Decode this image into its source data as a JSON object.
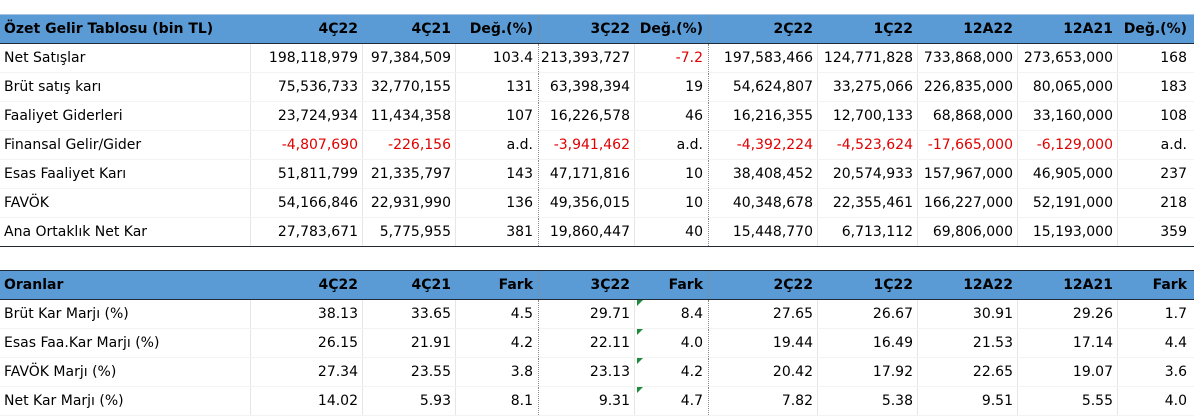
{
  "income": {
    "headers": [
      "Özet Gelir Tablosu (bin TL)",
      "4Ç22",
      "4Ç21",
      "Değ.(%)",
      "3Ç22",
      "Değ.(%)",
      "2Ç22",
      "1Ç22",
      "12A22",
      "12A21",
      "Değ.(%)"
    ],
    "rows": [
      {
        "label": "Net Satışlar",
        "cells": [
          "198,118,979",
          "97,384,509",
          "103.4",
          "213,393,727",
          "-7.2",
          "197,583,466",
          "124,771,828",
          "733,868,000",
          "273,653,000",
          "168"
        ]
      },
      {
        "label": "Brüt satış karı",
        "cells": [
          "75,536,733",
          "32,770,155",
          "131",
          "63,398,394",
          "19",
          "54,624,807",
          "33,275,066",
          "226,835,000",
          "80,065,000",
          "183"
        ]
      },
      {
        "label": "Faaliyet Giderleri",
        "cells": [
          "23,724,934",
          "11,434,358",
          "107",
          "16,226,578",
          "46",
          "16,216,355",
          "12,700,133",
          "68,868,000",
          "33,160,000",
          "108"
        ]
      },
      {
        "label": "Finansal Gelir/Gider",
        "cells": [
          "-4,807,690",
          "-226,156",
          "a.d.",
          "-3,941,462",
          "a.d.",
          "-4,392,224",
          "-4,523,624",
          "-17,665,000",
          "-6,129,000",
          "a.d."
        ]
      },
      {
        "label": "Esas Faaliyet Karı",
        "cells": [
          "51,811,799",
          "21,335,797",
          "143",
          "47,171,816",
          "10",
          "38,408,452",
          "20,574,933",
          "157,967,000",
          "46,905,000",
          "237"
        ]
      },
      {
        "label": "FAVÖK",
        "cells": [
          "54,166,846",
          "22,931,990",
          "136",
          "49,356,015",
          "10",
          "40,348,678",
          "22,355,461",
          "166,227,000",
          "52,191,000",
          "218"
        ]
      },
      {
        "label": "Ana Ortaklık Net Kar",
        "cells": [
          "27,783,671",
          "5,775,955",
          "381",
          "19,860,447",
          "40",
          "15,448,770",
          "6,713,112",
          "69,806,000",
          "15,193,000",
          "359"
        ]
      }
    ]
  },
  "ratios": {
    "headers": [
      "Oranlar",
      "4Ç22",
      "4Ç21",
      "Fark",
      "3Ç22",
      "Fark",
      "2Ç22",
      "1Ç22",
      "12A22",
      "12A21",
      "Fark"
    ],
    "rows": [
      {
        "label": "Brüt Kar Marjı (%)",
        "cells": [
          "38.13",
          "33.65",
          "4.5",
          "29.71",
          "8.4",
          "27.65",
          "26.67",
          "30.91",
          "29.26",
          "1.7"
        ]
      },
      {
        "label": "Esas Faa.Kar Marjı (%)",
        "cells": [
          "26.15",
          "21.91",
          "4.2",
          "22.11",
          "4.0",
          "19.44",
          "16.49",
          "21.53",
          "17.14",
          "4.4"
        ]
      },
      {
        "label": "FAVÖK Marjı (%)",
        "cells": [
          "27.34",
          "23.55",
          "3.8",
          "23.13",
          "4.2",
          "20.42",
          "17.92",
          "22.65",
          "19.07",
          "3.6"
        ]
      },
      {
        "label": "Net Kar Marjı (%)",
        "cells": [
          "14.02",
          "5.93",
          "8.1",
          "9.31",
          "4.7",
          "7.82",
          "5.38",
          "9.51",
          "5.55",
          "4.0"
        ]
      }
    ]
  },
  "colors": {
    "header_bg": "#5b9bd5",
    "negative": "#e00000",
    "comment_marker": "#1e8a3c"
  }
}
